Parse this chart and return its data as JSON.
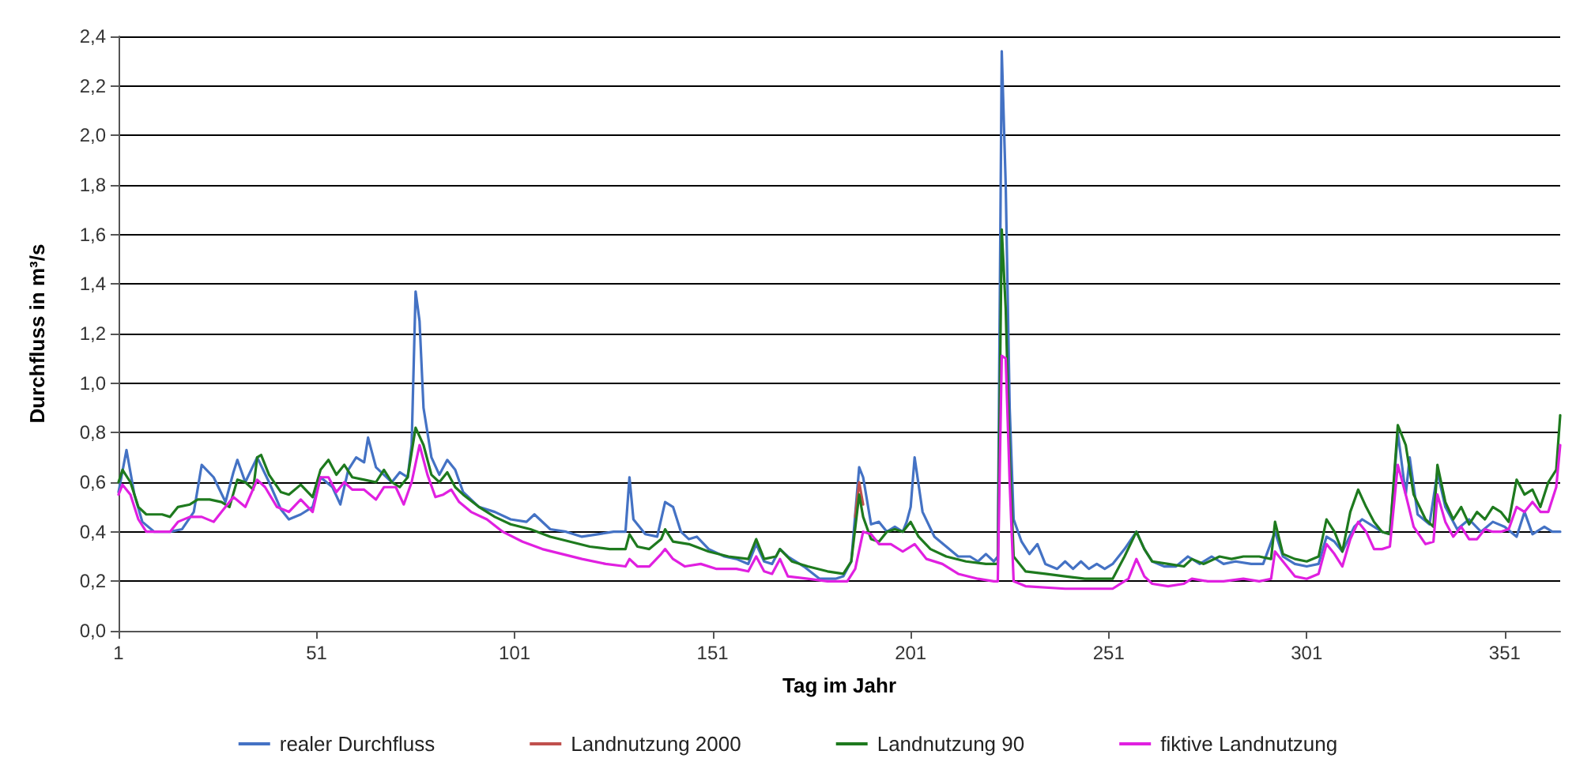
{
  "chart_data": {
    "type": "line",
    "xlabel": "Tag im Jahr",
    "ylabel": "Durchfluss in m³/s",
    "xlim": [
      1,
      365
    ],
    "xticks": [
      1,
      51,
      101,
      151,
      201,
      251,
      301,
      351
    ],
    "ylim": [
      0,
      2.4
    ],
    "yticks": [
      {
        "value": 0,
        "label": "0,0"
      },
      {
        "value": 0.2,
        "label": "0,2"
      },
      {
        "value": 0.4,
        "label": "0,4"
      },
      {
        "value": 0.6,
        "label": "0,6"
      },
      {
        "value": 0.8,
        "label": "0,8"
      },
      {
        "value": 1,
        "label": "1,0"
      },
      {
        "value": 1.2,
        "label": "1,2"
      },
      {
        "value": 1.4,
        "label": "1,4"
      },
      {
        "value": 1.6,
        "label": "1,6"
      },
      {
        "value": 1.8,
        "label": "1,8"
      },
      {
        "value": 2,
        "label": "2,0"
      },
      {
        "value": 2.2,
        "label": "2,2"
      },
      {
        "value": 2.4,
        "label": "2,4"
      }
    ],
    "grid": "y",
    "legend": "bottom",
    "marker": "none",
    "line_style": "solid",
    "series": [
      {
        "name": "realer Durchfluss",
        "color": "#4472c4",
        "x": [
          1,
          3,
          5,
          7,
          10,
          14,
          17,
          20,
          22,
          25,
          28,
          30,
          31,
          33,
          36,
          39,
          42,
          44,
          47,
          50,
          52,
          55,
          57,
          59,
          61,
          63,
          64,
          66,
          68,
          70,
          72,
          74,
          75,
          76,
          77,
          78,
          80,
          82,
          84,
          86,
          88,
          92,
          96,
          100,
          104,
          106,
          110,
          114,
          118,
          122,
          126,
          129,
          130,
          131,
          134,
          137,
          139,
          141,
          143,
          145,
          147,
          150,
          154,
          157,
          160,
          162,
          164,
          166,
          168,
          170,
          174,
          178,
          182,
          184,
          186,
          188,
          189,
          191,
          193,
          195,
          197,
          199,
          200,
          201,
          202,
          204,
          207,
          210,
          213,
          216,
          218,
          220,
          222,
          223,
          224,
          225,
          226,
          227,
          229,
          231,
          233,
          235,
          238,
          240,
          242,
          244,
          246,
          248,
          250,
          252,
          255,
          258,
          260,
          262,
          265,
          268,
          271,
          274,
          277,
          280,
          283,
          287,
          290,
          293,
          295,
          298,
          301,
          304,
          306,
          308,
          310,
          313,
          315,
          318,
          320,
          322,
          324,
          326,
          327,
          329,
          332,
          334,
          336,
          339,
          342,
          345,
          348,
          351,
          354,
          356,
          358,
          361,
          363,
          365
        ],
        "values": [
          0.56,
          0.73,
          0.55,
          0.44,
          0.4,
          0.4,
          0.41,
          0.48,
          0.67,
          0.62,
          0.52,
          0.64,
          0.69,
          0.6,
          0.7,
          0.6,
          0.49,
          0.45,
          0.47,
          0.5,
          0.62,
          0.58,
          0.51,
          0.65,
          0.7,
          0.68,
          0.78,
          0.66,
          0.63,
          0.6,
          0.64,
          0.62,
          0.75,
          1.37,
          1.25,
          0.9,
          0.7,
          0.63,
          0.69,
          0.65,
          0.56,
          0.5,
          0.48,
          0.45,
          0.44,
          0.47,
          0.41,
          0.4,
          0.38,
          0.39,
          0.4,
          0.4,
          0.62,
          0.45,
          0.39,
          0.38,
          0.52,
          0.5,
          0.4,
          0.37,
          0.38,
          0.33,
          0.3,
          0.29,
          0.27,
          0.35,
          0.28,
          0.27,
          0.33,
          0.3,
          0.26,
          0.21,
          0.21,
          0.22,
          0.28,
          0.66,
          0.62,
          0.43,
          0.44,
          0.4,
          0.42,
          0.4,
          0.44,
          0.5,
          0.7,
          0.48,
          0.38,
          0.34,
          0.3,
          0.3,
          0.28,
          0.31,
          0.28,
          0.3,
          2.34,
          1.8,
          0.9,
          0.45,
          0.36,
          0.31,
          0.35,
          0.27,
          0.25,
          0.28,
          0.25,
          0.28,
          0.25,
          0.27,
          0.25,
          0.27,
          0.33,
          0.4,
          0.33,
          0.28,
          0.26,
          0.26,
          0.3,
          0.27,
          0.3,
          0.27,
          0.28,
          0.27,
          0.27,
          0.4,
          0.3,
          0.27,
          0.26,
          0.27,
          0.38,
          0.36,
          0.32,
          0.42,
          0.45,
          0.42,
          0.4,
          0.39,
          0.8,
          0.55,
          0.7,
          0.47,
          0.43,
          0.64,
          0.5,
          0.41,
          0.45,
          0.4,
          0.44,
          0.42,
          0.38,
          0.48,
          0.39,
          0.42,
          0.4,
          0.4
        ]
      },
      {
        "name": "Landnutzung 2000",
        "color": "#c0504d",
        "x": [
          187,
          188,
          189
        ],
        "values": [
          0.46,
          0.6,
          0.51
        ]
      },
      {
        "name": "Landnutzung 90",
        "color": "#1e7a1e",
        "x": [
          1,
          2,
          4,
          6,
          8,
          12,
          14,
          16,
          19,
          21,
          24,
          27,
          29,
          31,
          33,
          35,
          36,
          37,
          39,
          42,
          44,
          47,
          50,
          52,
          54,
          56,
          58,
          60,
          63,
          66,
          68,
          70,
          72,
          74,
          76,
          78,
          80,
          82,
          84,
          86,
          88,
          92,
          96,
          100,
          105,
          110,
          115,
          120,
          125,
          129,
          130,
          132,
          135,
          138,
          139,
          141,
          145,
          150,
          155,
          160,
          162,
          164,
          167,
          168,
          171,
          175,
          180,
          184,
          186,
          188,
          189,
          191,
          193,
          195,
          197,
          199,
          201,
          203,
          206,
          210,
          215,
          220,
          223,
          224,
          225,
          226,
          227,
          230,
          235,
          240,
          245,
          250,
          252,
          255,
          258,
          260,
          262,
          266,
          270,
          272,
          275,
          279,
          282,
          285,
          289,
          292,
          293,
          295,
          298,
          301,
          304,
          306,
          308,
          310,
          312,
          314,
          316,
          318,
          320,
          322,
          324,
          326,
          328,
          331,
          333,
          334,
          336,
          338,
          340,
          342,
          344,
          346,
          348,
          350,
          352,
          354,
          356,
          358,
          360,
          362,
          364,
          365
        ],
        "values": [
          0.6,
          0.65,
          0.6,
          0.5,
          0.47,
          0.47,
          0.46,
          0.5,
          0.51,
          0.53,
          0.53,
          0.52,
          0.5,
          0.61,
          0.6,
          0.57,
          0.7,
          0.71,
          0.63,
          0.56,
          0.55,
          0.59,
          0.54,
          0.65,
          0.69,
          0.63,
          0.67,
          0.62,
          0.61,
          0.6,
          0.65,
          0.6,
          0.58,
          0.62,
          0.82,
          0.75,
          0.63,
          0.6,
          0.64,
          0.58,
          0.55,
          0.5,
          0.46,
          0.43,
          0.41,
          0.38,
          0.36,
          0.34,
          0.33,
          0.33,
          0.39,
          0.34,
          0.33,
          0.37,
          0.41,
          0.36,
          0.35,
          0.32,
          0.3,
          0.29,
          0.37,
          0.29,
          0.3,
          0.33,
          0.28,
          0.26,
          0.24,
          0.23,
          0.28,
          0.55,
          0.46,
          0.37,
          0.36,
          0.4,
          0.41,
          0.4,
          0.44,
          0.38,
          0.33,
          0.3,
          0.28,
          0.27,
          0.27,
          1.62,
          1.3,
          0.7,
          0.3,
          0.24,
          0.23,
          0.22,
          0.21,
          0.21,
          0.21,
          0.3,
          0.4,
          0.33,
          0.28,
          0.27,
          0.26,
          0.29,
          0.27,
          0.3,
          0.29,
          0.3,
          0.3,
          0.29,
          0.44,
          0.31,
          0.29,
          0.28,
          0.3,
          0.45,
          0.4,
          0.32,
          0.48,
          0.57,
          0.5,
          0.44,
          0.4,
          0.39,
          0.83,
          0.75,
          0.55,
          0.45,
          0.42,
          0.67,
          0.52,
          0.45,
          0.5,
          0.43,
          0.48,
          0.45,
          0.5,
          0.48,
          0.44,
          0.61,
          0.55,
          0.57,
          0.5,
          0.6,
          0.65,
          0.87
        ]
      },
      {
        "name": "fiktive Landnutzung",
        "color": "#e020e0",
        "x": [
          1,
          2,
          4,
          6,
          8,
          12,
          14,
          16,
          19,
          22,
          25,
          27,
          30,
          33,
          36,
          38,
          41,
          44,
          47,
          50,
          52,
          54,
          56,
          58,
          60,
          63,
          66,
          68,
          71,
          73,
          75,
          77,
          79,
          81,
          83,
          85,
          87,
          90,
          94,
          98,
          103,
          108,
          113,
          118,
          124,
          129,
          130,
          132,
          135,
          138,
          139,
          141,
          144,
          148,
          152,
          157,
          160,
          162,
          164,
          166,
          168,
          170,
          175,
          180,
          185,
          187,
          189,
          191,
          193,
          196,
          199,
          202,
          205,
          209,
          213,
          218,
          222,
          223,
          224,
          225,
          226,
          227,
          230,
          240,
          250,
          252,
          254,
          256,
          258,
          260,
          262,
          266,
          270,
          272,
          276,
          280,
          285,
          289,
          292,
          293,
          295,
          298,
          301,
          304,
          306,
          308,
          310,
          312,
          314,
          316,
          318,
          320,
          322,
          324,
          326,
          328,
          331,
          333,
          334,
          336,
          338,
          340,
          342,
          344,
          346,
          348,
          350,
          352,
          354,
          356,
          358,
          360,
          362,
          364,
          365
        ],
        "values": [
          0.55,
          0.59,
          0.55,
          0.45,
          0.4,
          0.4,
          0.4,
          0.44,
          0.46,
          0.46,
          0.44,
          0.48,
          0.54,
          0.5,
          0.61,
          0.58,
          0.5,
          0.48,
          0.53,
          0.48,
          0.62,
          0.62,
          0.56,
          0.6,
          0.57,
          0.57,
          0.53,
          0.58,
          0.58,
          0.51,
          0.6,
          0.75,
          0.63,
          0.54,
          0.55,
          0.57,
          0.52,
          0.48,
          0.45,
          0.4,
          0.36,
          0.33,
          0.31,
          0.29,
          0.27,
          0.26,
          0.29,
          0.26,
          0.26,
          0.31,
          0.33,
          0.29,
          0.26,
          0.27,
          0.25,
          0.25,
          0.24,
          0.3,
          0.24,
          0.23,
          0.29,
          0.22,
          0.21,
          0.2,
          0.2,
          0.25,
          0.4,
          0.39,
          0.35,
          0.35,
          0.32,
          0.35,
          0.29,
          0.27,
          0.23,
          0.21,
          0.2,
          0.2,
          1.11,
          1.1,
          0.6,
          0.2,
          0.18,
          0.17,
          0.17,
          0.17,
          0.19,
          0.21,
          0.29,
          0.22,
          0.19,
          0.18,
          0.19,
          0.21,
          0.2,
          0.2,
          0.21,
          0.2,
          0.21,
          0.32,
          0.28,
          0.22,
          0.21,
          0.23,
          0.35,
          0.31,
          0.26,
          0.37,
          0.44,
          0.4,
          0.33,
          0.33,
          0.34,
          0.67,
          0.55,
          0.42,
          0.35,
          0.36,
          0.55,
          0.44,
          0.38,
          0.42,
          0.37,
          0.37,
          0.41,
          0.4,
          0.4,
          0.41,
          0.5,
          0.48,
          0.52,
          0.48,
          0.48,
          0.58,
          0.75
        ]
      }
    ]
  }
}
